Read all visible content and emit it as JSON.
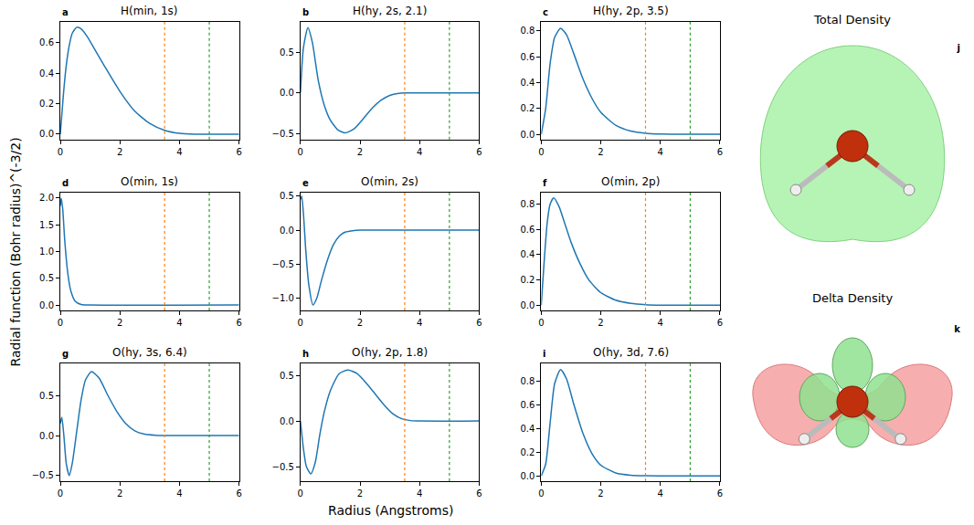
{
  "chart_data": [
    {
      "type": "line",
      "title": "H(min, 1s)",
      "letter": "a",
      "color": "#1f77b4",
      "x": [
        0,
        0.1,
        0.2,
        0.3,
        0.4,
        0.55,
        0.7,
        0.9,
        1.2,
        1.5,
        2.0,
        2.5,
        3.0,
        3.5,
        4.0,
        4.5,
        5.0,
        6.0
      ],
      "values": [
        0,
        0.25,
        0.45,
        0.58,
        0.66,
        0.7,
        0.69,
        0.64,
        0.54,
        0.44,
        0.28,
        0.15,
        0.07,
        0.025,
        0.005,
        0,
        0,
        0
      ],
      "xlim": [
        0,
        6
      ],
      "xticks": [
        0,
        2,
        4,
        6
      ],
      "ylim": [
        -0.035,
        0.735
      ],
      "yticks": [
        {
          "value": 0,
          "label": "0.0"
        },
        0.2,
        0.4,
        0.6
      ],
      "vlines": [
        {
          "value": 3.5,
          "color": "#ff7f0e",
          "line_style": "dotted"
        },
        {
          "value": 5,
          "color": "#2ca02c",
          "line_style": "dotted"
        }
      ]
    },
    {
      "type": "line",
      "title": "H(hy, 2s, 2.1)",
      "letter": "b",
      "color": "#1f77b4",
      "x": [
        0,
        0.1,
        0.25,
        0.4,
        0.6,
        0.8,
        1.0,
        1.25,
        1.5,
        1.8,
        2.1,
        2.4,
        2.7,
        3.0,
        3.3,
        3.5,
        4.0,
        6.0
      ],
      "values": [
        0,
        0.55,
        0.8,
        0.62,
        0.15,
        -0.15,
        -0.33,
        -0.45,
        -0.49,
        -0.44,
        -0.32,
        -0.19,
        -0.09,
        -0.03,
        -0.005,
        0,
        0,
        0
      ],
      "xlim": [
        0,
        6
      ],
      "xticks": [
        0,
        2,
        4,
        6
      ],
      "ylim": [
        -0.57,
        0.87
      ],
      "yticks": [
        {
          "value": -0.5,
          "label": "−0.5"
        },
        {
          "value": 0,
          "label": "0.0"
        },
        0.5
      ],
      "vlines": [
        {
          "value": 3.5,
          "color": "#ff7f0e",
          "line_style": "dotted"
        },
        {
          "value": 5,
          "color": "#2ca02c",
          "line_style": "dotted"
        }
      ]
    },
    {
      "type": "line",
      "title": "H(hy, 2p, 3.5)",
      "letter": "c",
      "color": "#1f77b4",
      "x": [
        0,
        0.15,
        0.3,
        0.45,
        0.65,
        0.85,
        1.1,
        1.4,
        1.7,
        2.0,
        2.5,
        3.0,
        3.5,
        4.0,
        5.0,
        6.0
      ],
      "values": [
        0,
        0.2,
        0.55,
        0.75,
        0.82,
        0.77,
        0.62,
        0.43,
        0.28,
        0.17,
        0.07,
        0.025,
        0.008,
        0.002,
        0,
        0
      ],
      "xlim": [
        0,
        6
      ],
      "xticks": [
        0,
        2,
        4,
        6
      ],
      "ylim": [
        -0.04,
        0.87
      ],
      "yticks": [
        {
          "value": 0,
          "label": "0.0"
        },
        0.2,
        0.4,
        0.6,
        0.8
      ],
      "vlines": [
        {
          "value": 3.5,
          "color": "#ff7f0e",
          "line_style": "dotted"
        },
        {
          "value": 5,
          "color": "#2ca02c",
          "line_style": "dotted"
        }
      ]
    },
    {
      "type": "line",
      "title": "O(min, 1s)",
      "letter": "d",
      "color": "#1f77b4",
      "x": [
        0,
        0.03,
        0.08,
        0.15,
        0.25,
        0.35,
        0.5,
        0.7,
        1.0,
        6.0
      ],
      "values": [
        1.85,
        2.0,
        1.8,
        1.2,
        0.6,
        0.27,
        0.07,
        0.01,
        0,
        0
      ],
      "xlim": [
        0,
        6
      ],
      "xticks": [
        0,
        2,
        4,
        6
      ],
      "ylim": [
        -0.1,
        2.1
      ],
      "yticks": [
        {
          "value": 0,
          "label": "0.0"
        },
        0.5,
        {
          "value": 1,
          "label": "1.0"
        },
        1.5,
        {
          "value": 2,
          "label": "2.0"
        }
      ],
      "vlines": [
        {
          "value": 3.5,
          "color": "#ff7f0e",
          "line_style": "dotted"
        },
        {
          "value": 5,
          "color": "#2ca02c",
          "line_style": "dotted"
        }
      ]
    },
    {
      "type": "line",
      "title": "O(min, 2s)",
      "letter": "e",
      "color": "#1f77b4",
      "x": [
        0,
        0.04,
        0.1,
        0.18,
        0.28,
        0.42,
        0.55,
        0.7,
        0.9,
        1.1,
        1.3,
        1.5,
        1.8,
        2.0,
        6.0
      ],
      "values": [
        0.45,
        0.5,
        0.25,
        -0.3,
        -0.8,
        -1.1,
        -1.0,
        -0.75,
        -0.45,
        -0.22,
        -0.09,
        -0.03,
        -0.005,
        0,
        0
      ],
      "xlim": [
        0,
        6
      ],
      "xticks": [
        0,
        2,
        4,
        6
      ],
      "ylim": [
        -1.18,
        0.55
      ],
      "yticks": [
        {
          "value": -1,
          "label": "−1.0"
        },
        {
          "value": -0.5,
          "label": "−0.5"
        },
        {
          "value": 0,
          "label": "0.0"
        },
        0.5
      ],
      "vlines": [
        {
          "value": 3.5,
          "color": "#ff7f0e",
          "line_style": "dotted"
        },
        {
          "value": 5,
          "color": "#2ca02c",
          "line_style": "dotted"
        }
      ]
    },
    {
      "type": "line",
      "title": "O(min, 2p)",
      "letter": "f",
      "color": "#1f77b4",
      "x": [
        0,
        0.1,
        0.2,
        0.3,
        0.42,
        0.6,
        0.8,
        1.0,
        1.3,
        1.6,
        2.0,
        2.5,
        3.0,
        3.5,
        4.0,
        5.0,
        6.0
      ],
      "values": [
        0,
        0.35,
        0.65,
        0.8,
        0.85,
        0.78,
        0.64,
        0.5,
        0.33,
        0.2,
        0.1,
        0.04,
        0.015,
        0.005,
        0.001,
        0,
        0
      ],
      "xlim": [
        0,
        6
      ],
      "xticks": [
        0,
        2,
        4,
        6
      ],
      "ylim": [
        -0.04,
        0.89
      ],
      "yticks": [
        {
          "value": 0,
          "label": "0.0"
        },
        0.2,
        0.4,
        0.6,
        0.8
      ],
      "vlines": [
        {
          "value": 3.5,
          "color": "#ff7f0e",
          "line_style": "dotted"
        },
        {
          "value": 5,
          "color": "#2ca02c",
          "line_style": "dotted"
        }
      ]
    },
    {
      "type": "line",
      "title": "O(hy, 3s, 6.4)",
      "letter": "g",
      "color": "#1f77b4",
      "x": [
        0,
        0.05,
        0.12,
        0.2,
        0.3,
        0.4,
        0.55,
        0.7,
        0.85,
        1.05,
        1.3,
        1.6,
        1.9,
        2.2,
        2.5,
        2.8,
        3.2,
        3.5,
        6.0
      ],
      "values": [
        0.15,
        0.23,
        0.0,
        -0.35,
        -0.5,
        -0.35,
        0.05,
        0.45,
        0.7,
        0.8,
        0.72,
        0.5,
        0.3,
        0.15,
        0.06,
        0.02,
        0.003,
        0,
        0
      ],
      "xlim": [
        0,
        6
      ],
      "xticks": [
        0,
        2,
        4,
        6
      ],
      "ylim": [
        -0.57,
        0.9
      ],
      "yticks": [
        {
          "value": -0.5,
          "label": "−0.5"
        },
        {
          "value": 0,
          "label": "0.0"
        },
        0.5
      ],
      "vlines": [
        {
          "value": 3.5,
          "color": "#ff7f0e",
          "line_style": "dotted"
        },
        {
          "value": 5,
          "color": "#2ca02c",
          "line_style": "dotted"
        }
      ]
    },
    {
      "type": "line",
      "title": "O(hy, 2p, 1.8)",
      "letter": "h",
      "color": "#1f77b4",
      "x": [
        0,
        0.1,
        0.2,
        0.35,
        0.5,
        0.65,
        0.8,
        1.0,
        1.3,
        1.6,
        1.9,
        2.2,
        2.5,
        2.8,
        3.1,
        3.4,
        3.7,
        4.0,
        6.0
      ],
      "values": [
        0,
        -0.3,
        -0.5,
        -0.58,
        -0.45,
        -0.15,
        0.1,
        0.33,
        0.52,
        0.56,
        0.52,
        0.42,
        0.3,
        0.18,
        0.08,
        0.025,
        0.005,
        0,
        0
      ],
      "xlim": [
        0,
        6
      ],
      "xticks": [
        0,
        2,
        4,
        6
      ],
      "ylim": [
        -0.66,
        0.63
      ],
      "yticks": [
        {
          "value": -0.5,
          "label": "−0.5"
        },
        {
          "value": 0,
          "label": "0.0"
        },
        0.5
      ],
      "vlines": [
        {
          "value": 3.5,
          "color": "#ff7f0e",
          "line_style": "dotted"
        },
        {
          "value": 5,
          "color": "#2ca02c",
          "line_style": "dotted"
        }
      ]
    },
    {
      "type": "line",
      "title": "O(hy, 3d, 7.6)",
      "letter": "i",
      "color": "#1f77b4",
      "x": [
        0,
        0.15,
        0.3,
        0.45,
        0.65,
        0.85,
        1.1,
        1.4,
        1.7,
        2.0,
        2.5,
        3.0,
        3.5,
        4.0,
        6.0
      ],
      "values": [
        0,
        0.1,
        0.45,
        0.78,
        0.9,
        0.82,
        0.6,
        0.36,
        0.19,
        0.09,
        0.025,
        0.006,
        0.001,
        0,
        0
      ],
      "xlim": [
        0,
        6
      ],
      "xticks": [
        0,
        2,
        4,
        6
      ],
      "ylim": [
        -0.045,
        0.95
      ],
      "yticks": [
        {
          "value": 0,
          "label": "0.0"
        },
        0.2,
        0.4,
        0.6,
        0.8
      ],
      "vlines": [
        {
          "value": 3.5,
          "color": "#ff7f0e",
          "line_style": "dotted"
        },
        {
          "value": 5,
          "color": "#2ca02c",
          "line_style": "dotted"
        }
      ]
    }
  ],
  "x_label": "Radius (Angstroms)",
  "y_label": "Radial function (Bohr radius)^(-3/2)",
  "images": [
    {
      "title": "Total Density",
      "letter": "j"
    },
    {
      "title": "Delta Density",
      "letter": "k"
    }
  ]
}
